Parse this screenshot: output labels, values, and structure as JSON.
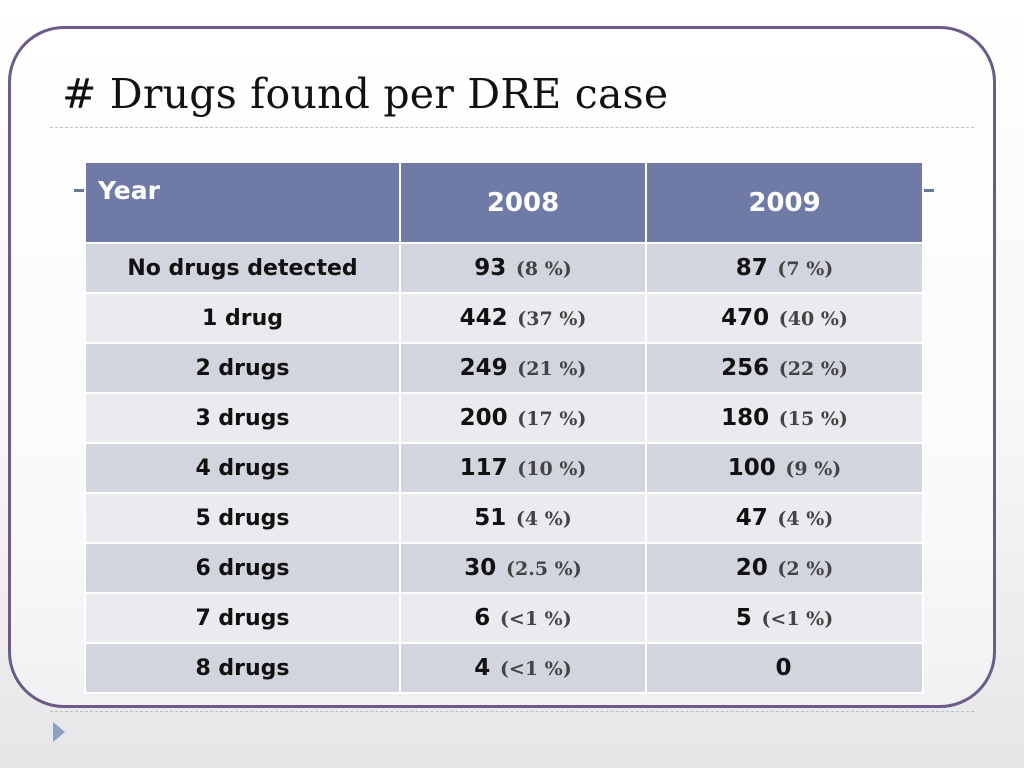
{
  "title": "# Drugs found per DRE case",
  "table": {
    "headers": [
      "Year",
      "2008",
      "2009"
    ],
    "rows": [
      {
        "label": "No drugs detected",
        "v2008": "93",
        "p2008": "(8 %)",
        "v2009": "87",
        "p2009": "(7 %)"
      },
      {
        "label": "1 drug",
        "v2008": "442",
        "p2008": "(37 %)",
        "v2009": "470",
        "p2009": "(40 %)"
      },
      {
        "label": "2 drugs",
        "v2008": "249",
        "p2008": "(21 %)",
        "v2009": "256",
        "p2009": "(22 %)"
      },
      {
        "label": "3 drugs",
        "v2008": "200",
        "p2008": "(17 %)",
        "v2009": "180",
        "p2009": "(15 %)"
      },
      {
        "label": "4 drugs",
        "v2008": "117",
        "p2008": "(10 %)",
        "v2009": "100",
        "p2009": "(9 %)"
      },
      {
        "label": "5 drugs",
        "v2008": "51",
        "p2008": "(4 %)",
        "v2009": "47",
        "p2009": "(4 %)"
      },
      {
        "label": "6 drugs",
        "v2008": "30",
        "p2008": "(2.5 %)",
        "v2009": "20",
        "p2009": "(2 %)"
      },
      {
        "label": "7 drugs",
        "v2008": "6",
        "p2008": "(<1 %)",
        "v2009": "5",
        "p2009": "(<1 %)"
      },
      {
        "label": "8 drugs",
        "v2008": "4",
        "p2008": "(<1 %)",
        "v2009": "0",
        "p2009": ""
      }
    ]
  },
  "colors": {
    "header_bg": "#6f7aa6",
    "row_odd": "#d2d5de",
    "row_even": "#eaebef",
    "frame_border": "#6c5b8a"
  },
  "icons": {
    "next_slide": "triangle-right-icon"
  }
}
